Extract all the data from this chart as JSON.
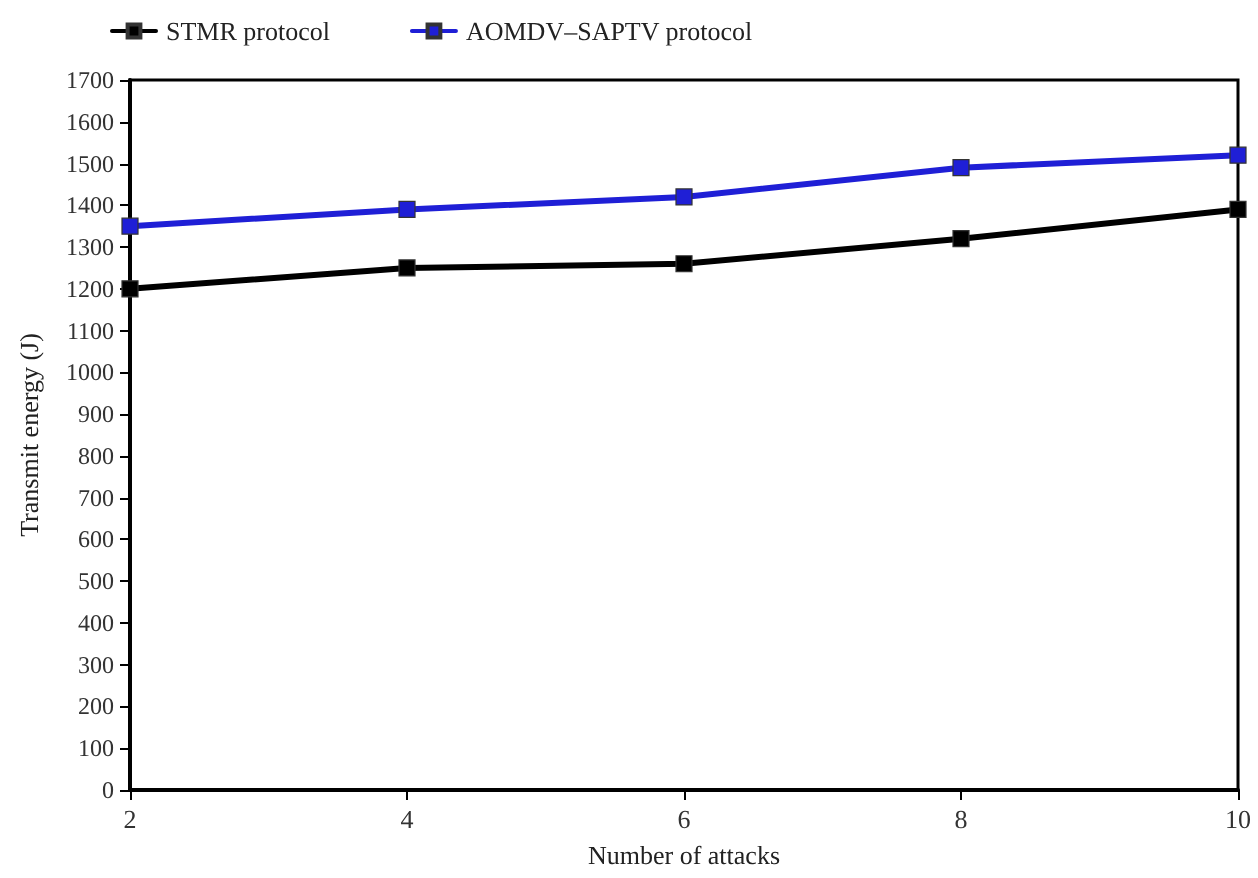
{
  "chart_data": {
    "type": "line",
    "xlabel": "Number of attacks",
    "ylabel": "Transmit energy (J)",
    "x": [
      2,
      4,
      6,
      8,
      10
    ],
    "series": [
      {
        "name": "STMR protocol",
        "color": "#000000",
        "values": [
          1200,
          1250,
          1260,
          1320,
          1390
        ]
      },
      {
        "name": "AOMDV–SAPTV protocol",
        "color": "#1f1fd6",
        "values": [
          1350,
          1390,
          1420,
          1490,
          1520
        ]
      }
    ],
    "xlim": [
      2,
      10
    ],
    "xticks": [
      2,
      4,
      6,
      8,
      10
    ],
    "ylim": [
      0,
      1700
    ],
    "yticks": [
      0,
      100,
      200,
      300,
      400,
      500,
      600,
      700,
      800,
      900,
      1000,
      1100,
      1200,
      1300,
      1400,
      1500,
      1600,
      1700
    ],
    "grid": false,
    "legend": "top left",
    "marker": "square",
    "line_style": "solid"
  }
}
